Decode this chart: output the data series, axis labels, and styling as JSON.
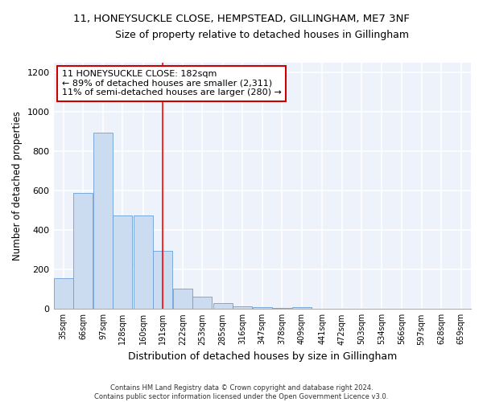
{
  "title": "11, HONEYSUCKLE CLOSE, HEMPSTEAD, GILLINGHAM, ME7 3NF",
  "subtitle": "Size of property relative to detached houses in Gillingham",
  "xlabel": "Distribution of detached houses by size in Gillingham",
  "ylabel": "Number of detached properties",
  "bin_labels": [
    "35sqm",
    "66sqm",
    "97sqm",
    "128sqm",
    "160sqm",
    "191sqm",
    "222sqm",
    "253sqm",
    "285sqm",
    "316sqm",
    "347sqm",
    "378sqm",
    "409sqm",
    "441sqm",
    "472sqm",
    "503sqm",
    "534sqm",
    "566sqm",
    "597sqm",
    "628sqm",
    "659sqm"
  ],
  "bin_centers": [
    35,
    66,
    97,
    128,
    160,
    191,
    222,
    253,
    285,
    316,
    347,
    378,
    409,
    441,
    472,
    503,
    534,
    566,
    597,
    628,
    659
  ],
  "bar_heights": [
    155,
    590,
    895,
    475,
    475,
    295,
    105,
    63,
    28,
    15,
    10,
    7,
    10,
    0,
    0,
    0,
    0,
    0,
    0,
    0,
    0
  ],
  "bar_color": "#ccdcf0",
  "bar_edge_color": "#6a9fd8",
  "bg_color": "#eef3fb",
  "grid_color": "#ffffff",
  "red_line_x": 191,
  "annotation_text": "11 HONEYSUCKLE CLOSE: 182sqm\n← 89% of detached houses are smaller (2,311)\n11% of semi-detached houses are larger (280) →",
  "annotation_box_color": "#ffffff",
  "annotation_border_color": "#cc0000",
  "ylim": [
    0,
    1250
  ],
  "yticks": [
    0,
    200,
    400,
    600,
    800,
    1000,
    1200
  ],
  "footer1": "Contains HM Land Registry data © Crown copyright and database right 2024.",
  "footer2": "Contains public sector information licensed under the Open Government Licence v3.0."
}
